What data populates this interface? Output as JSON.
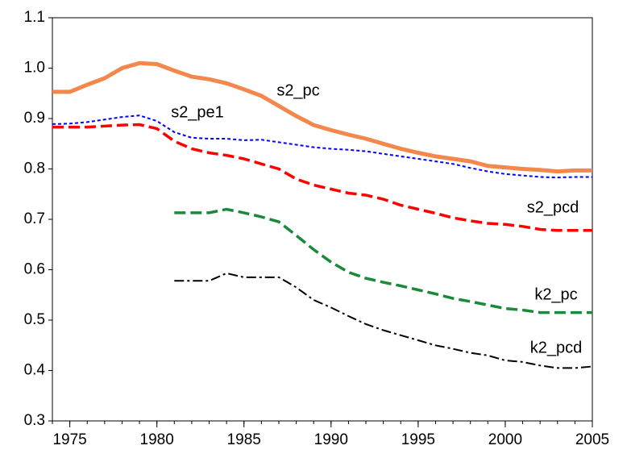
{
  "chart_data": {
    "type": "line",
    "x": [
      1974,
      1975,
      1976,
      1977,
      1978,
      1979,
      1980,
      1981,
      1982,
      1983,
      1984,
      1985,
      1986,
      1987,
      1988,
      1989,
      1990,
      1991,
      1992,
      1993,
      1994,
      1995,
      1996,
      1997,
      1998,
      1999,
      2000,
      2001,
      2002,
      2003,
      2004,
      2005
    ],
    "xlim": [
      1974,
      2005
    ],
    "xticks": [
      1975,
      1980,
      1985,
      1990,
      1995,
      2000,
      2005
    ],
    "ylim": [
      0.3,
      1.1
    ],
    "yticks": [
      {
        "value": 0.3,
        "label": "0.3"
      },
      {
        "value": 0.4,
        "label": "0.4"
      },
      {
        "value": 0.5,
        "label": "0.5"
      },
      {
        "value": 0.6,
        "label": "0.6"
      },
      {
        "value": 0.7,
        "label": "0.7"
      },
      {
        "value": 0.8,
        "label": "0.8"
      },
      {
        "value": 0.9,
        "label": "0.9"
      },
      {
        "value": 1.0,
        "label": "1.0"
      },
      {
        "value": 1.1,
        "label": "1.1"
      }
    ],
    "series": [
      {
        "name": "s2_pc",
        "color": "#f4874b",
        "width": 5,
        "dash": "none",
        "values": [
          0.953,
          0.953,
          0.967,
          0.98,
          1.0,
          1.01,
          1.008,
          0.995,
          0.983,
          0.978,
          0.97,
          0.958,
          0.945,
          0.925,
          0.905,
          0.887,
          0.877,
          0.868,
          0.86,
          0.85,
          0.84,
          0.832,
          0.825,
          0.82,
          0.815,
          0.806,
          0.803,
          0.8,
          0.798,
          0.795,
          0.797,
          0.797
        ]
      },
      {
        "name": "s2_pe1",
        "color": "#0000ff",
        "width": 2,
        "dash": "4 3",
        "values": [
          0.889,
          0.89,
          0.893,
          0.898,
          0.903,
          0.906,
          0.895,
          0.873,
          0.862,
          0.86,
          0.86,
          0.857,
          0.858,
          0.853,
          0.848,
          0.843,
          0.84,
          0.838,
          0.835,
          0.83,
          0.825,
          0.82,
          0.815,
          0.81,
          0.802,
          0.795,
          0.79,
          0.787,
          0.784,
          0.783,
          0.784,
          0.784
        ]
      },
      {
        "name": "s2_pcd",
        "color": "#ff0000",
        "width": 3.5,
        "dash": "14 6",
        "values": [
          0.883,
          0.883,
          0.883,
          0.885,
          0.887,
          0.888,
          0.88,
          0.855,
          0.84,
          0.832,
          0.827,
          0.82,
          0.81,
          0.8,
          0.78,
          0.768,
          0.76,
          0.752,
          0.748,
          0.74,
          0.728,
          0.72,
          0.712,
          0.703,
          0.697,
          0.692,
          0.69,
          0.686,
          0.68,
          0.678,
          0.678,
          0.678
        ]
      },
      {
        "name": "k2_pc",
        "color": "#1a8a3a",
        "width": 3.5,
        "dash": "14 6",
        "values": [
          null,
          null,
          null,
          null,
          null,
          null,
          null,
          0.713,
          0.713,
          0.713,
          0.72,
          0.713,
          0.705,
          0.695,
          0.668,
          0.64,
          0.615,
          0.595,
          0.583,
          0.575,
          0.568,
          0.56,
          0.552,
          0.543,
          0.537,
          0.53,
          0.523,
          0.52,
          0.515,
          0.515,
          0.515,
          0.515
        ]
      },
      {
        "name": "k2_pcd",
        "color": "#000000",
        "width": 2,
        "dash": "12 4 3 4",
        "values": [
          null,
          null,
          null,
          null,
          null,
          null,
          null,
          0.578,
          0.578,
          0.578,
          0.593,
          0.585,
          0.585,
          0.585,
          0.565,
          0.54,
          0.525,
          0.508,
          0.492,
          0.48,
          0.47,
          0.46,
          0.45,
          0.443,
          0.435,
          0.43,
          0.42,
          0.417,
          0.41,
          0.405,
          0.405,
          0.408
        ]
      }
    ]
  }
}
